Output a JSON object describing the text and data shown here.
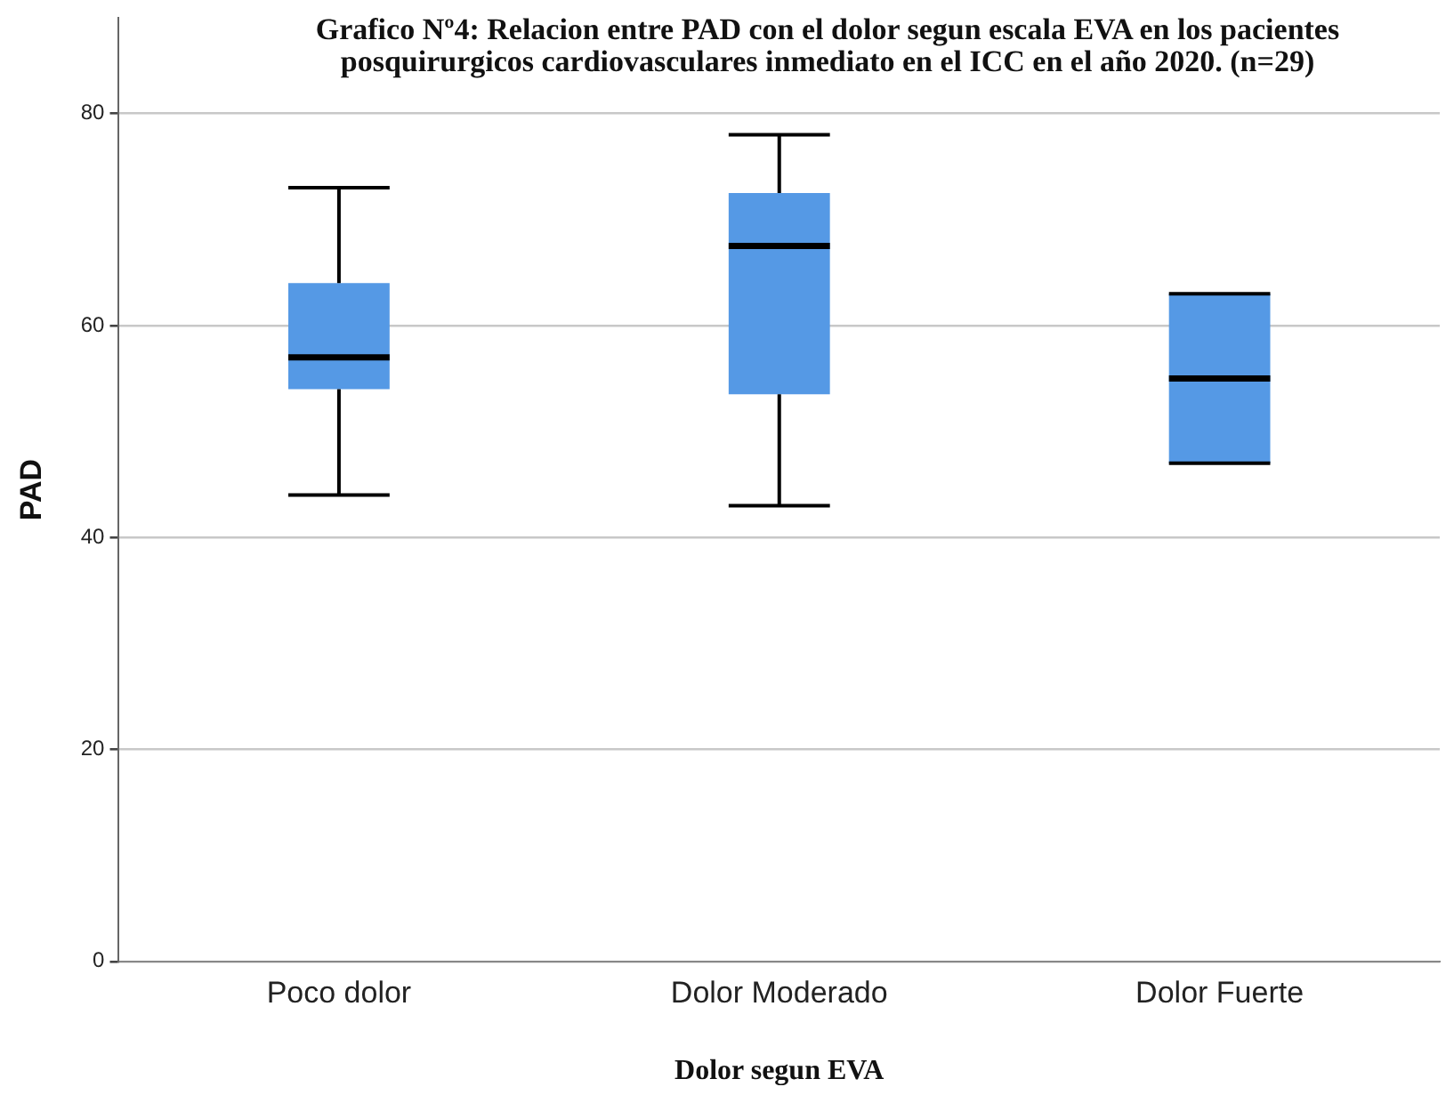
{
  "chart_data": {
    "type": "box",
    "title": "Grafico Nº4: Relacion entre PAD con el dolor segun escala EVA en los pacientes posquirurgicos cardiovasculares inmediato en el ICC en el año 2020. (n=29)",
    "xlabel": "Dolor segun EVA",
    "ylabel": "PAD",
    "categories": [
      "Poco dolor",
      "Dolor Moderado",
      "Dolor Fuerte"
    ],
    "color": "#5599e5",
    "boxes": [
      {
        "low": 44,
        "q1": 54,
        "median": 57,
        "q3": 64,
        "high": 73
      },
      {
        "low": 43,
        "q1": 53.5,
        "median": 67.5,
        "q3": 72.5,
        "high": 78
      },
      {
        "low": 47,
        "q1": 47,
        "median": 55,
        "q3": 63,
        "high": 63
      }
    ],
    "ylim": [
      0,
      89
    ],
    "yticks": [
      0,
      20,
      40,
      60,
      80
    ],
    "grid": "y"
  }
}
